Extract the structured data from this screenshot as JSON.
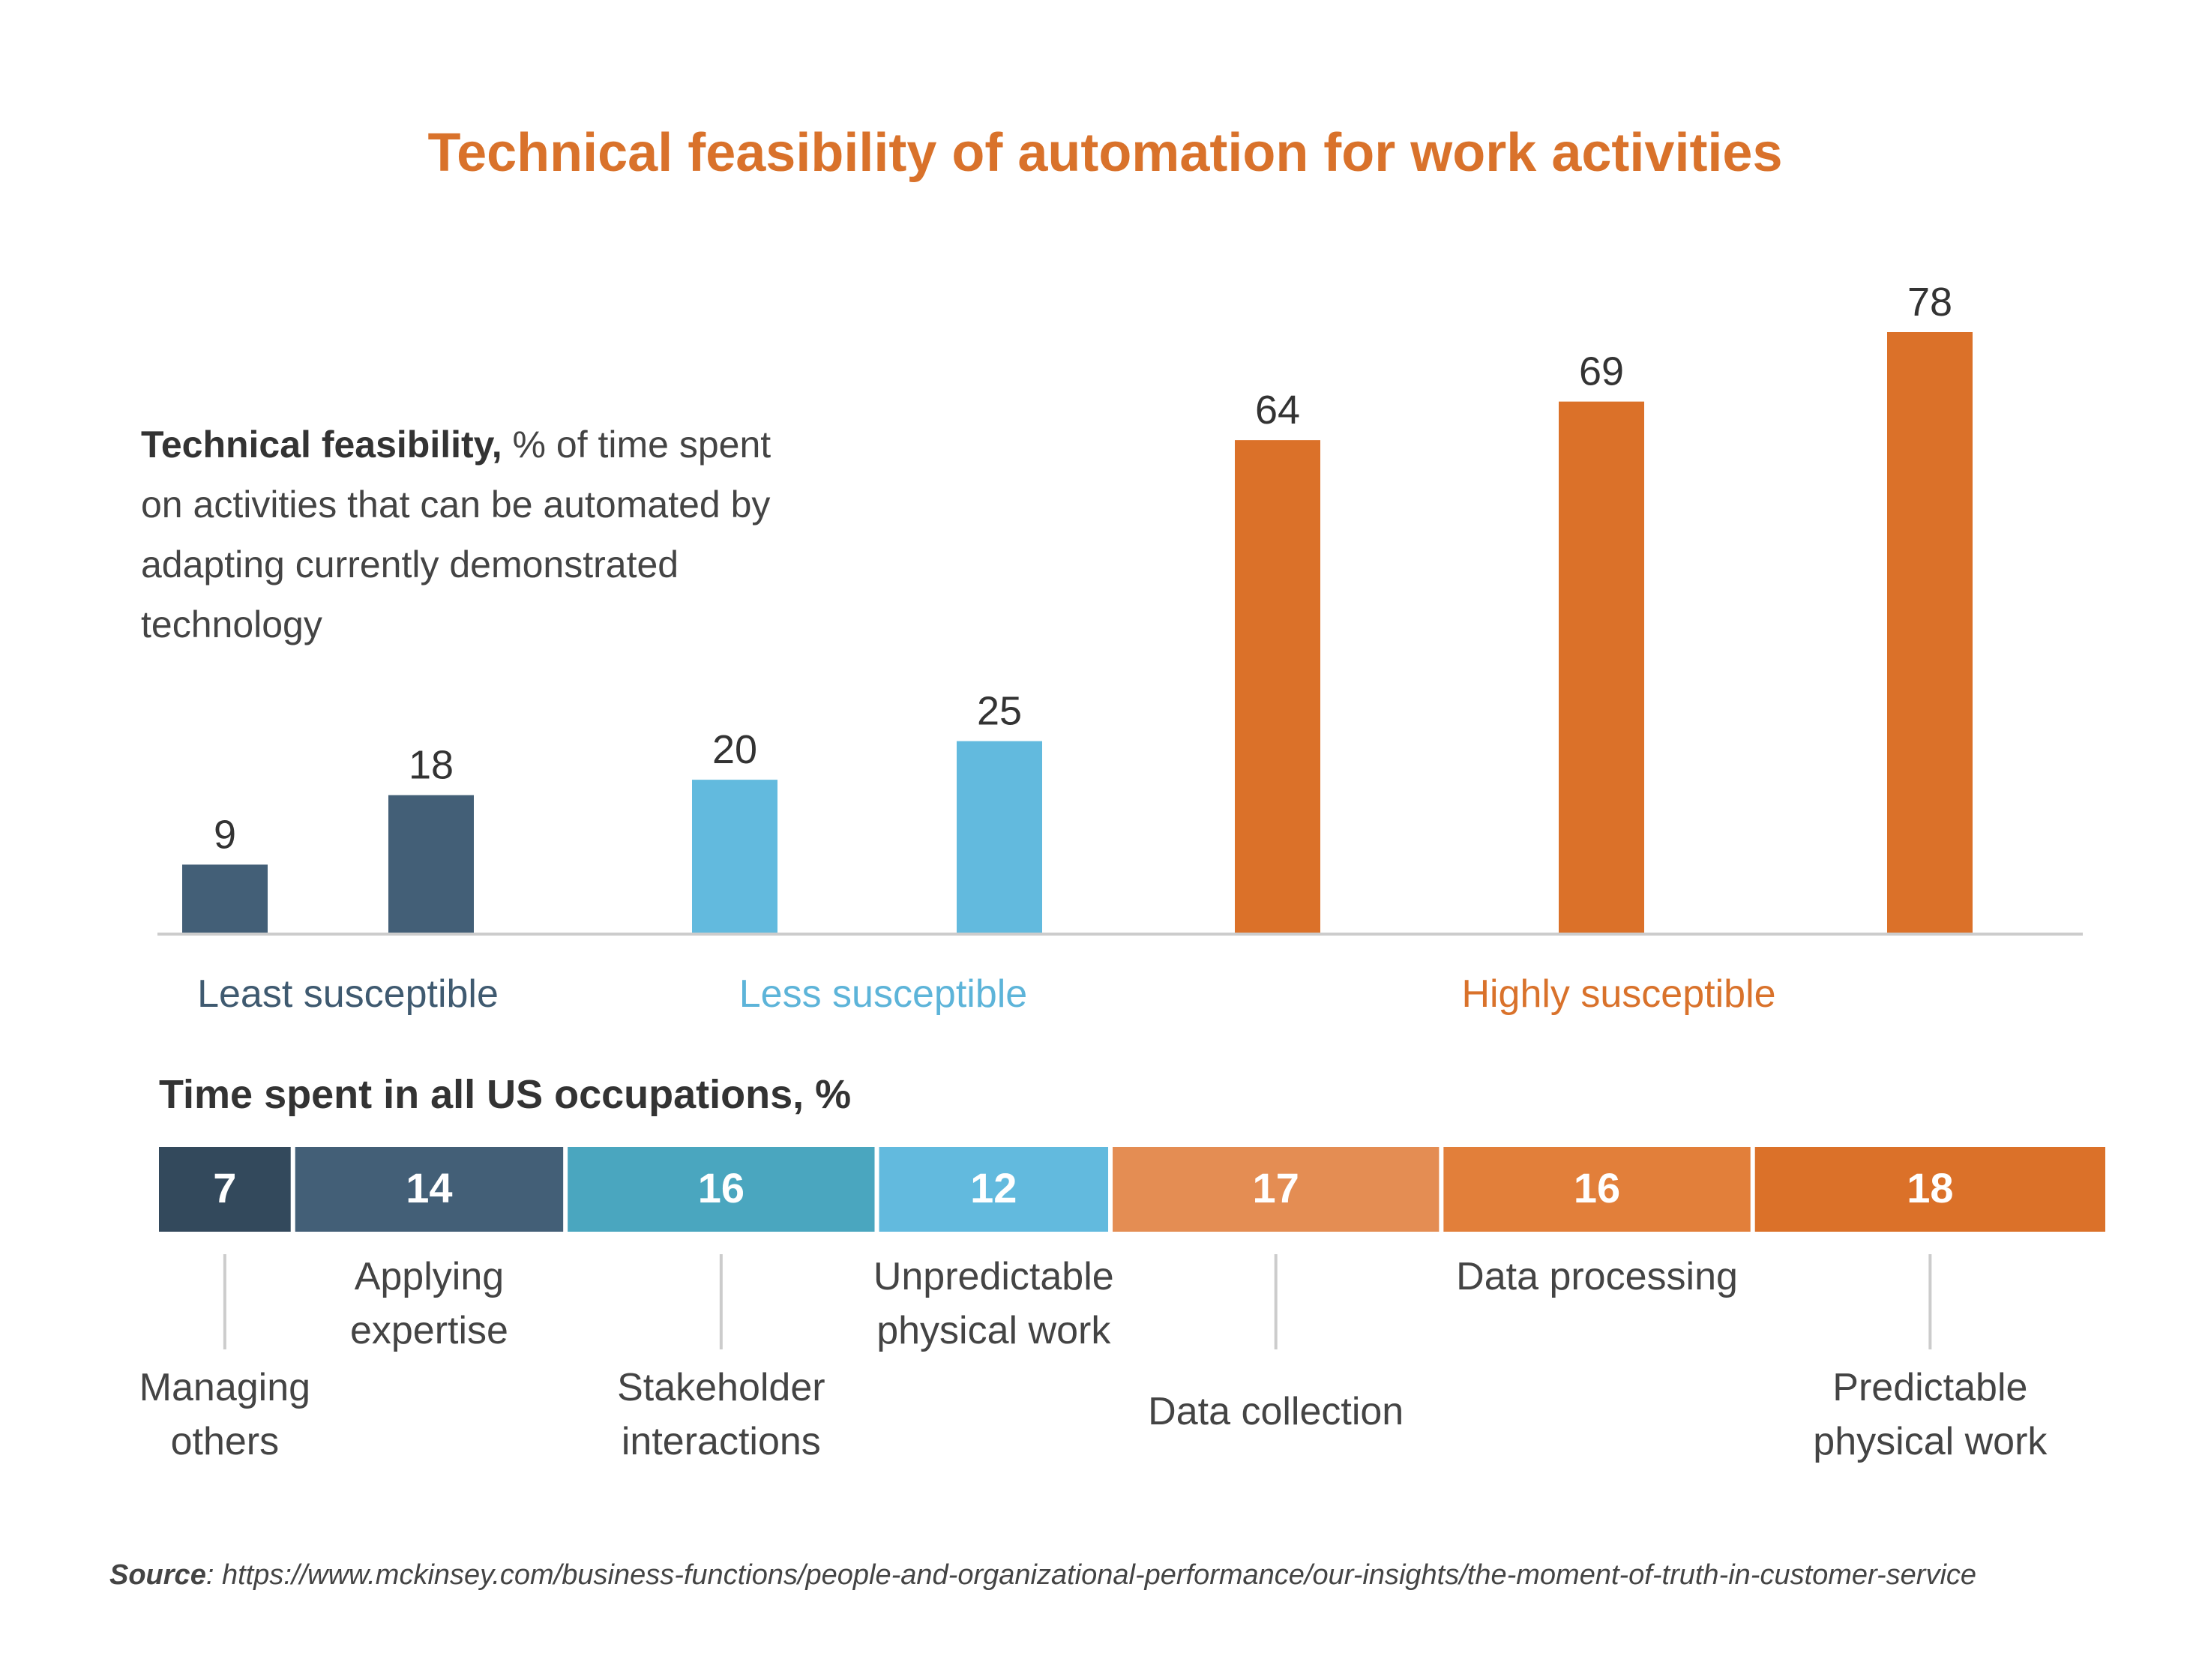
{
  "colors": {
    "title": "#D9722B",
    "dark_navy": "#33495C",
    "slate": "#435F77",
    "teal": "#4AA6BF",
    "light_blue": "#62BADE",
    "light_orange": "#E48D53",
    "mid_orange": "#E27F3A",
    "orange": "#DB7129",
    "axis": "#CCCCCC",
    "text": "#333333",
    "muted_text": "#444444"
  },
  "chart_data": [
    {
      "type": "bar",
      "title": "Technical feasibility of automation for work activities",
      "subtitle_bold": "Technical feasibility,",
      "subtitle_rest": " % of time spent",
      "subtitle_lines": [
        "on activities that can be automated by",
        "adapting currently demonstrated",
        "technology"
      ],
      "values": [
        9,
        18,
        20,
        25,
        64,
        69,
        78
      ],
      "bar_colors": [
        "#435F77",
        "#435F77",
        "#62BADE",
        "#62BADE",
        "#DB7129",
        "#DB7129",
        "#DB7129"
      ],
      "ylim": [
        0,
        80
      ],
      "groups": [
        {
          "label": "Least susceptible",
          "color": "#3F5A70"
        },
        {
          "label": "Less susceptible",
          "color": "#5DB4D9"
        },
        {
          "label": "Highly susceptible",
          "color": "#D9722B"
        }
      ]
    },
    {
      "type": "bar",
      "title": "Time spent in all US occupations, %",
      "orientation": "stacked-horizontal",
      "categories": [
        "Managing others",
        "Applying expertise",
        "Stakeholder interactions",
        "Unpredictable physical work",
        "Data collection",
        "Data processing",
        "Predictable physical work"
      ],
      "category_lines": [
        [
          "Managing",
          "others"
        ],
        [
          "Applying",
          "expertise"
        ],
        [
          "Stakeholder",
          "interactions"
        ],
        [
          "Unpredictable",
          "physical work"
        ],
        [
          "Data collection"
        ],
        [
          "Data processing"
        ],
        [
          "Predictable",
          "physical work"
        ]
      ],
      "values": [
        7,
        14,
        16,
        12,
        17,
        16,
        18
      ],
      "segment_colors": [
        "#33495C",
        "#435F77",
        "#4AA6BF",
        "#62BADE",
        "#E48D53",
        "#E27F3A",
        "#DB7129"
      ],
      "label_placement": [
        "below",
        "above",
        "below",
        "above",
        "below",
        "above",
        "below"
      ]
    }
  ],
  "source": {
    "label": "Source",
    "text": ": https://www.mckinsey.com/business-functions/people-and-organizational-performance/our-insights/the-moment-of-truth-in-customer-service"
  }
}
